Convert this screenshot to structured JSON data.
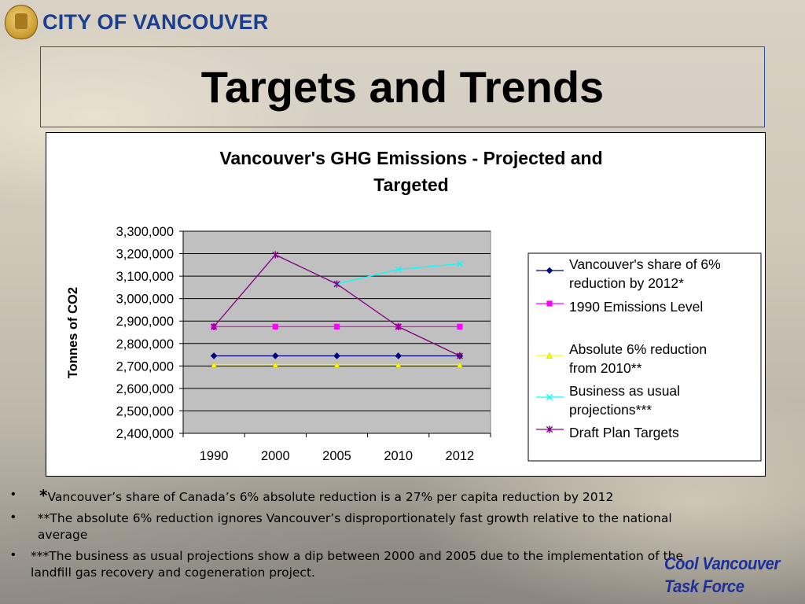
{
  "header": {
    "org_name": "CITY OF VANCOUVER",
    "slide_title": "Targets and Trends"
  },
  "chart_data": {
    "type": "line",
    "title_line1": "Vancouver's GHG Emissions - Projected and",
    "title_line2": "Targeted",
    "xlabel": "",
    "ylabel": "Tonnes of CO2",
    "categories": [
      "1990",
      "2000",
      "2005",
      "2010",
      "2012"
    ],
    "ylim": [
      2400000,
      3300000
    ],
    "yticks": [
      {
        "value": 3300000,
        "label": "3,300,000"
      },
      {
        "value": 3200000,
        "label": "3,200,000"
      },
      {
        "value": 3100000,
        "label": "3,100,000"
      },
      {
        "value": 3000000,
        "label": "3,000,000"
      },
      {
        "value": 2900000,
        "label": "2,900,000"
      },
      {
        "value": 2800000,
        "label": "2,800,000"
      },
      {
        "value": 2700000,
        "label": "2,700,000"
      },
      {
        "value": 2600000,
        "label": "2,600,000"
      },
      {
        "value": 2500000,
        "label": "2,500,000"
      },
      {
        "value": 2400000,
        "label": "2,400,000"
      }
    ],
    "grid": true,
    "plot_background": "#c0c0c0",
    "legend_position": "right",
    "series": [
      {
        "name_lines": [
          "Vancouver's share of 6%",
          "reduction by 2012*"
        ],
        "color": "#000080",
        "marker": "diamond",
        "values": [
          2745000,
          2745000,
          2745000,
          2745000,
          2745000
        ]
      },
      {
        "name_lines": [
          "1990 Emissions Level"
        ],
        "color": "#ff00ff",
        "marker": "square",
        "values": [
          2875000,
          2875000,
          2875000,
          2875000,
          2875000
        ]
      },
      {
        "name_lines": [
          "Absolute 6% reduction",
          "from 2010**"
        ],
        "color": "#ffff00",
        "marker": "triangle",
        "values": [
          2705000,
          2705000,
          2705000,
          2705000,
          2705000
        ]
      },
      {
        "name_lines": [
          "Business as usual",
          "projections***"
        ],
        "color": "#00ffff",
        "marker": "x",
        "values": [
          null,
          null,
          3065000,
          3130000,
          3155000
        ]
      },
      {
        "name_lines": [
          "Draft Plan Targets"
        ],
        "color": "#800080",
        "marker": "star",
        "values": [
          2875000,
          3195000,
          3065000,
          2875000,
          2745000
        ]
      }
    ]
  },
  "notes": [
    {
      "prefix": "*",
      "text": "Vancouver’s share of Canada’s 6% absolute reduction is a 27% per capita reduction by 2012"
    },
    {
      "prefix": "",
      "text": "**The absolute 6% reduction ignores Vancouver’s disproportionately fast growth relative to the national average"
    },
    {
      "prefix": "",
      "text": "***The business as usual projections show a dip between 2000 and 2005 due to the implementation of the landfill gas recovery and cogeneration project."
    }
  ],
  "brand": {
    "line1": "Cool Vancouver",
    "line2": "Task Force"
  }
}
